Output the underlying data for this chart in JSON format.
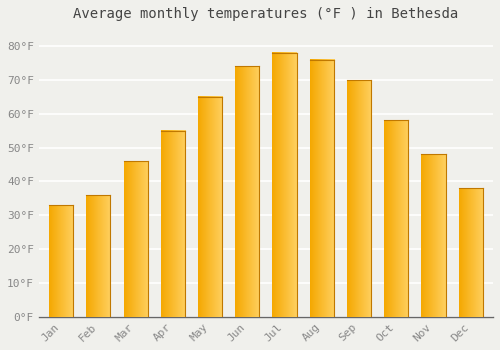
{
  "title": "Average monthly temperatures (°F ) in Bethesda",
  "months": [
    "Jan",
    "Feb",
    "Mar",
    "Apr",
    "May",
    "Jun",
    "Jul",
    "Aug",
    "Sep",
    "Oct",
    "Nov",
    "Dec"
  ],
  "values": [
    33,
    36,
    46,
    55,
    65,
    74,
    78,
    76,
    70,
    58,
    48,
    38
  ],
  "bar_color_left": "#F5A800",
  "bar_color_right": "#FFD060",
  "background_color": "#F0F0EC",
  "grid_color": "#FFFFFF",
  "ylim": [
    0,
    85
  ],
  "yticks": [
    0,
    10,
    20,
    30,
    40,
    50,
    60,
    70,
    80
  ],
  "ytick_labels": [
    "0°F",
    "10°F",
    "20°F",
    "30°F",
    "40°F",
    "50°F",
    "60°F",
    "70°F",
    "80°F"
  ],
  "title_fontsize": 10,
  "tick_fontsize": 8,
  "font_family": "monospace"
}
